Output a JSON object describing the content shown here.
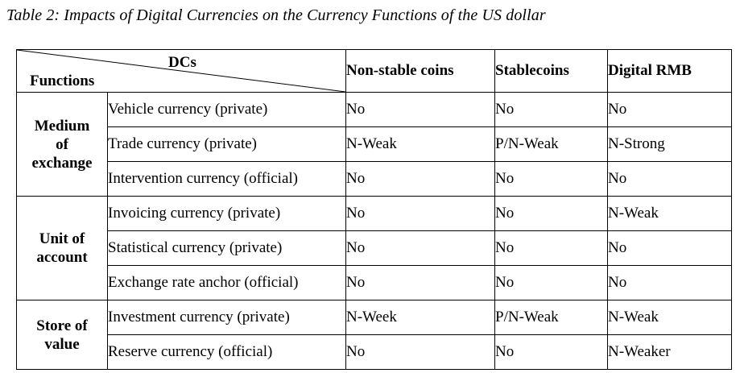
{
  "caption": "Table 2: Impacts of Digital Currencies on the Currency Functions of the US dollar",
  "header": {
    "corner_top": "DCs",
    "corner_bottom": "Functions",
    "columns": [
      "Non-stable coins",
      "Stablecoins",
      "Digital RMB"
    ]
  },
  "groups": [
    {
      "label_lines": [
        "Medium",
        "of",
        "exchange"
      ],
      "rows": [
        {
          "function": "Vehicle currency (private)",
          "values": [
            "No",
            "No",
            "No"
          ]
        },
        {
          "function": "Trade currency (private)",
          "values": [
            "N-Weak",
            "P/N-Weak",
            "N-Strong"
          ]
        },
        {
          "function": "Intervention currency (official)",
          "values": [
            "No",
            "No",
            "No"
          ]
        }
      ]
    },
    {
      "label_lines": [
        "Unit of",
        "account"
      ],
      "rows": [
        {
          "function": "Invoicing currency (private)",
          "values": [
            "No",
            "No",
            "N-Weak"
          ]
        },
        {
          "function": "Statistical currency (private)",
          "values": [
            "No",
            "No",
            "No"
          ]
        },
        {
          "function": "Exchange rate anchor (official)",
          "values": [
            "No",
            "No",
            "No"
          ]
        }
      ]
    },
    {
      "label_lines": [
        "Store of",
        "value"
      ],
      "rows": [
        {
          "function": "Investment currency (private)",
          "values": [
            "N-Week",
            "P/N-Weak",
            "N-Weak"
          ]
        },
        {
          "function": "Reserve currency (official)",
          "values": [
            "No",
            "No",
            "N-Weaker"
          ]
        }
      ]
    }
  ]
}
